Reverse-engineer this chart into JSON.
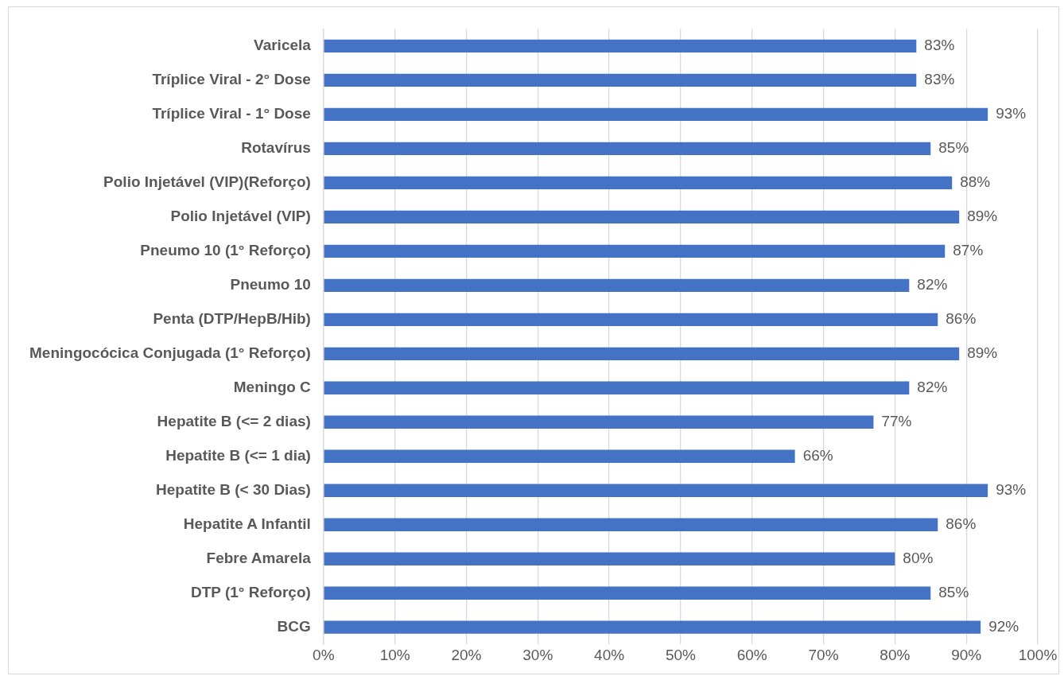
{
  "chart_data": {
    "type": "bar",
    "orientation": "horizontal",
    "categories": [
      "Varicela",
      "Tríplice Viral - 2° Dose",
      "Tríplice Viral - 1° Dose",
      "Rotavírus",
      "Polio Injetável (VIP)(Reforço)",
      "Polio Injetável (VIP)",
      "Pneumo 10 (1° Reforço)",
      "Pneumo 10",
      "Penta (DTP/HepB/Hib)",
      "Meningocócica Conjugada (1° Reforço)",
      "Meningo C",
      "Hepatite B (<= 2 dias)",
      "Hepatite B (<= 1 dia)",
      "Hepatite B (< 30 Dias)",
      "Hepatite A Infantil",
      "Febre Amarela",
      "DTP (1° Reforço)",
      "BCG"
    ],
    "values": [
      83,
      83,
      93,
      85,
      88,
      89,
      87,
      82,
      86,
      89,
      82,
      77,
      66,
      93,
      86,
      80,
      85,
      92
    ],
    "value_labels": [
      "83%",
      "83%",
      "93%",
      "85%",
      "88%",
      "89%",
      "87%",
      "82%",
      "86%",
      "89%",
      "82%",
      "77%",
      "66%",
      "93%",
      "86%",
      "80%",
      "85%",
      "92%"
    ],
    "color": "#4472c4",
    "xlim": [
      0,
      100
    ],
    "xticks": [
      {
        "value": 0,
        "label": "0%"
      },
      {
        "value": 10,
        "label": "10%"
      },
      {
        "value": 20,
        "label": "20%"
      },
      {
        "value": 30,
        "label": "30%"
      },
      {
        "value": 40,
        "label": "40%"
      },
      {
        "value": 50,
        "label": "50%"
      },
      {
        "value": 60,
        "label": "60%"
      },
      {
        "value": 70,
        "label": "70%"
      },
      {
        "value": 80,
        "label": "80%"
      },
      {
        "value": 90,
        "label": "90%"
      },
      {
        "value": 100,
        "label": "100%"
      }
    ],
    "grid": "x",
    "legend": false
  }
}
